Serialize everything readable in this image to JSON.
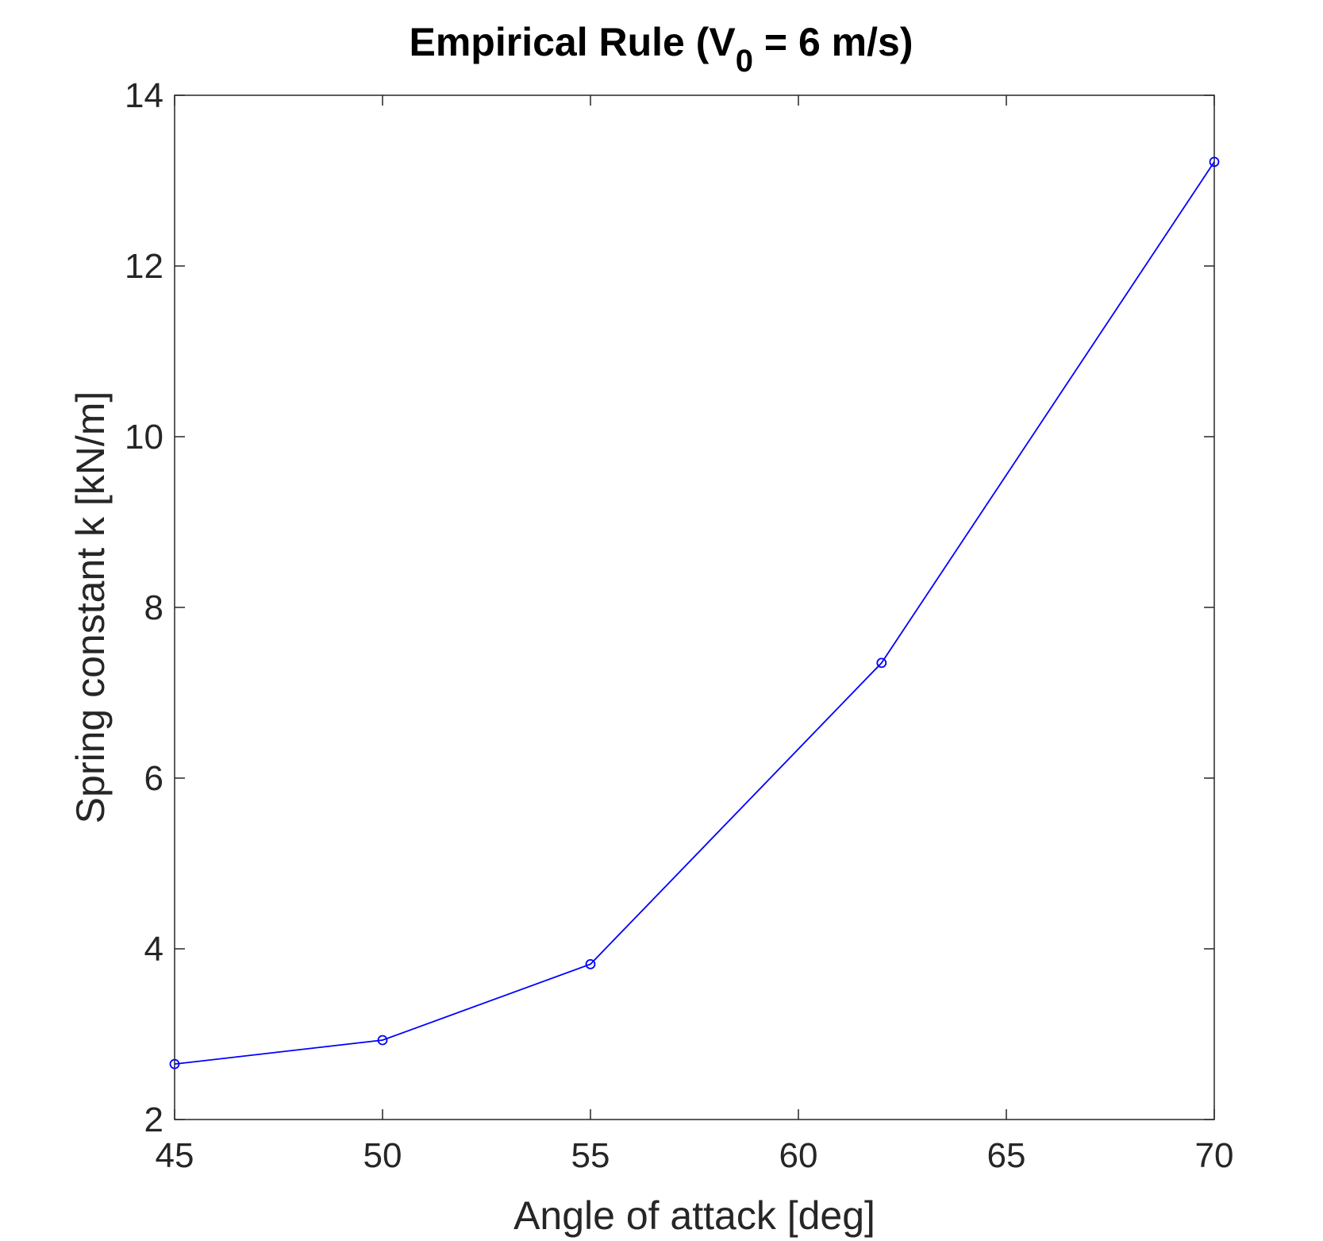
{
  "chart_data": {
    "type": "line",
    "title": {
      "prefix": "Empirical Rule (V",
      "subscript": "0",
      "suffix": " = 6 m/s)"
    },
    "xlabel": "Angle of attack [deg]",
    "ylabel": "Spring constant k [kN/m]",
    "xlim": [
      45,
      70
    ],
    "ylim": [
      2,
      14
    ],
    "xticks": [
      45,
      50,
      55,
      60,
      65,
      70
    ],
    "yticks": [
      2,
      4,
      6,
      8,
      10,
      12,
      14
    ],
    "grid": false,
    "series": [
      {
        "color": "#0000ff",
        "marker": "circle",
        "x": [
          45,
          50,
          55,
          62,
          70
        ],
        "y": [
          2.65,
          2.93,
          3.82,
          7.35,
          13.22
        ]
      }
    ]
  }
}
